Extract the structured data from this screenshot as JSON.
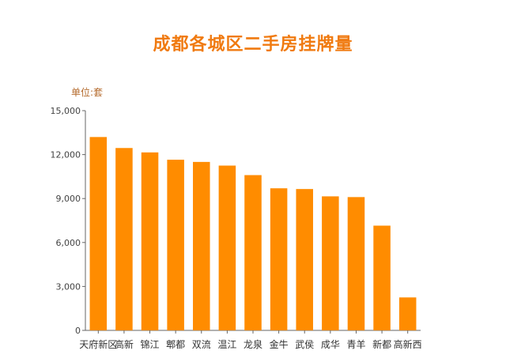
{
  "chart_data": {
    "type": "bar",
    "title": "成都各城区二手房挂牌量",
    "unit_label": "单位:套",
    "categories": [
      "天府新区",
      "高新",
      "锦江",
      "郫都",
      "双流",
      "温江",
      "龙泉",
      "金牛",
      "武侯",
      "成华",
      "青羊",
      "新都",
      "高新西"
    ],
    "values": [
      13200,
      12450,
      12150,
      11650,
      11500,
      11250,
      10600,
      9700,
      9650,
      9150,
      9100,
      7150,
      2250
    ],
    "ylim": [
      0,
      15000
    ],
    "yticks": [
      "0",
      "3,000",
      "6,000",
      "9,000",
      "12,000",
      "15,000"
    ],
    "ytick_values": [
      0,
      3000,
      6000,
      9000,
      12000,
      15000
    ],
    "xlabel": "",
    "ylabel": "",
    "grid": false,
    "bar_color": "#ff8c00"
  }
}
